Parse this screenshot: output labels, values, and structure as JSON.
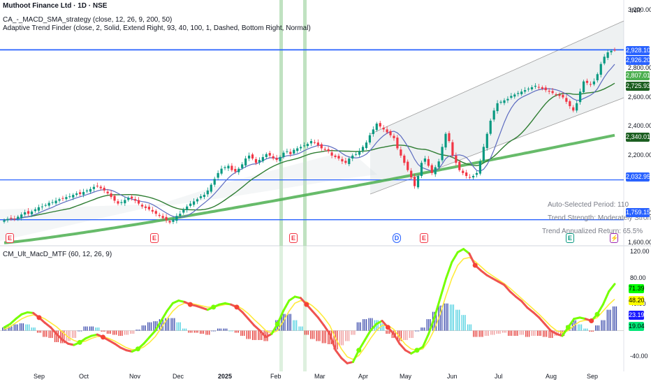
{
  "header": {
    "title": "Muthoot Finance Ltd · 1D · NSE",
    "indicator1": "CA_-_MACD_SMA_strategy (close, 12, 26, 9, 200, 50)",
    "indicator2": "Adaptive Trend Finder (close, 2, Solid, Extend Right, 93, 40, 100, 1, Dashed, Bottom Right, Normal)"
  },
  "lower_pane": {
    "title": "CM_Ult_MacD_MTF (60, 12, 26, 9)"
  },
  "currency": "INR",
  "trend_stats": {
    "period": "Auto-Selected Period: 110",
    "strength": "Trend Strength: Moderately Strong",
    "return": "Trend Annualized Return: 65.5%"
  },
  "price_tags": [
    {
      "label": "2,928.10",
      "bg": "#2962ff",
      "fg": "#ffffff"
    },
    {
      "label": "2,926.20",
      "bg": "#2962ff",
      "fg": "#ffffff"
    },
    {
      "label": "2,807.01",
      "bg": "#4caf50",
      "fg": "#ffffff"
    },
    {
      "label": "2,725.93",
      "bg": "#1b5e20",
      "fg": "#ffffff"
    },
    {
      "label": "2,340.01",
      "bg": "#1b5e20",
      "fg": "#ffffff"
    },
    {
      "label": "2,032.95",
      "bg": "#2962ff",
      "fg": "#ffffff"
    },
    {
      "label": "1,759.15",
      "bg": "#2962ff",
      "fg": "#ffffff"
    }
  ],
  "macd_tags": [
    {
      "label": "71.39",
      "bg": "#00ff00",
      "fg": "#000000"
    },
    {
      "label": "48.20",
      "bg": "#ffff00",
      "fg": "#000000"
    },
    {
      "label": "23.19",
      "bg": "#1a1aff",
      "fg": "#ffffff"
    },
    {
      "label": "19.04",
      "bg": "#00e676",
      "fg": "#000000"
    }
  ],
  "events": [
    {
      "label": "E",
      "color": "#f23645"
    },
    {
      "label": "E",
      "color": "#f23645"
    },
    {
      "label": "E",
      "color": "#f23645"
    },
    {
      "label": "D",
      "color": "#2962ff"
    },
    {
      "label": "E",
      "color": "#f23645"
    },
    {
      "label": "E",
      "color": "#089981"
    },
    {
      "label": "⚡",
      "color": "#9c27b0"
    }
  ],
  "chart_data": [
    {
      "type": "candlestick",
      "title": "Muthoot Finance Ltd · 1D · NSE",
      "x_labels": [
        "Sep",
        "Oct",
        "Nov",
        "Dec",
        "2025",
        "Feb",
        "Mar",
        "Apr",
        "May",
        "Jun",
        "Jul",
        "Aug",
        "Sep"
      ],
      "y_ticks": [
        "3,200.00",
        "2,800.00",
        "2,600.00",
        "2,400.00",
        "2,200.00",
        "1,800.00",
        "1,600.00"
      ],
      "ylim": [
        1580,
        3270
      ],
      "close": [
        1755,
        1765,
        1770,
        1762,
        1780,
        1795,
        1810,
        1800,
        1815,
        1830,
        1845,
        1850,
        1860,
        1875,
        1880,
        1890,
        1900,
        1905,
        1915,
        1920,
        1930,
        1940,
        1935,
        1950,
        1960,
        1970,
        1985,
        1990,
        1975,
        1960,
        1940,
        1915,
        1890,
        1870,
        1880,
        1895,
        1910,
        1905,
        1890,
        1870,
        1850,
        1840,
        1830,
        1815,
        1800,
        1785,
        1770,
        1755,
        1740,
        1760,
        1785,
        1800,
        1830,
        1850,
        1870,
        1885,
        1900,
        1920,
        1930,
        1960,
        2000,
        2040,
        2080,
        2110,
        2120,
        2130,
        2100,
        2090,
        2110,
        2140,
        2180,
        2200,
        2180,
        2150,
        2170,
        2190,
        2210,
        2200,
        2180,
        2170,
        2190,
        2220,
        2230,
        2210,
        2240,
        2250,
        2260,
        2270,
        2280,
        2300,
        2290,
        2270,
        2250,
        2240,
        2230,
        2200,
        2190,
        2180,
        2160,
        2150,
        2180,
        2200,
        2210,
        2230,
        2260,
        2290,
        2340,
        2380,
        2420,
        2400,
        2380,
        2360,
        2340,
        2320,
        2250,
        2200,
        2150,
        2100,
        2050,
        1990,
        2060,
        2150,
        2180,
        2130,
        2080,
        2120,
        2160,
        2260,
        2350,
        2300,
        2200,
        2150,
        2100,
        2080,
        2060,
        2050,
        2060,
        2080,
        2160,
        2260,
        2350,
        2440,
        2510,
        2560,
        2570,
        2580,
        2590,
        2610,
        2620,
        2630,
        2640,
        2650,
        2660,
        2670,
        2680,
        2670,
        2660,
        2650,
        2640,
        2630,
        2620,
        2610,
        2600,
        2570,
        2540,
        2510,
        2560,
        2640,
        2710,
        2700,
        2690,
        2710,
        2760,
        2830,
        2880,
        2910,
        2920,
        2926
      ],
      "series": [
        {
          "name": "",
          "note": "price candles"
        }
      ],
      "levels": [
        2928.1,
        2926.2,
        2032.95,
        1759.15
      ],
      "sma50_end": 2725.93,
      "sma200_end": 2340.01,
      "ema_end": 2807.01
    },
    {
      "type": "macd",
      "title": "CM_Ult_MacD_MTF (60, 12, 26, 9)",
      "y_ticks": [
        "120.00",
        "80.00",
        "40.00",
        "-40.00"
      ],
      "ylim": [
        -55,
        130
      ],
      "macd": [
        5,
        10,
        18,
        25,
        28,
        27,
        20,
        12,
        5,
        -5,
        -14,
        -20,
        -22,
        -18,
        -12,
        -8,
        -6,
        -10,
        -15,
        -20,
        -26,
        -30,
        -32,
        -28,
        -20,
        -10,
        0,
        15,
        30,
        42,
        46,
        44,
        40,
        38,
        35,
        32,
        36,
        40,
        42,
        40,
        36,
        28,
        18,
        8,
        0,
        -10,
        -5,
        10,
        30,
        46,
        52,
        50,
        40,
        30,
        20,
        8,
        -5,
        -30,
        -42,
        -50,
        -48,
        -30,
        -15,
        0,
        10,
        15,
        5,
        -5,
        -20,
        -30,
        -35,
        -30,
        -25,
        -5,
        20,
        50,
        80,
        105,
        120,
        125,
        118,
        100,
        92,
        85,
        80,
        75,
        70,
        60,
        52,
        45,
        35,
        28,
        20,
        10,
        0,
        -5,
        -8,
        5,
        18,
        20,
        18,
        15,
        25,
        40,
        60,
        71.39
      ],
      "signal": [
        2,
        6,
        12,
        18,
        22,
        24,
        22,
        18,
        12,
        6,
        -2,
        -10,
        -15,
        -18,
        -16,
        -12,
        -9,
        -9,
        -12,
        -16,
        -21,
        -26,
        -29,
        -29,
        -25,
        -18,
        -9,
        4,
        18,
        30,
        38,
        42,
        42,
        40,
        38,
        36,
        36,
        38,
        40,
        40,
        38,
        33,
        26,
        17,
        9,
        0,
        -4,
        0,
        14,
        30,
        42,
        46,
        44,
        38,
        30,
        20,
        8,
        -12,
        -28,
        -40,
        -44,
        -38,
        -26,
        -12,
        0,
        8,
        8,
        2,
        -10,
        -21,
        -28,
        -30,
        -28,
        -16,
        2,
        26,
        54,
        80,
        100,
        110,
        112,
        106,
        98,
        90,
        84,
        78,
        72,
        65,
        57,
        49,
        41,
        33,
        25,
        16,
        7,
        0,
        -3,
        0,
        8,
        14,
        16,
        16,
        20,
        30,
        40,
        48.2
      ],
      "histogram_last": 23.19,
      "extra_last": 19.04
    }
  ]
}
